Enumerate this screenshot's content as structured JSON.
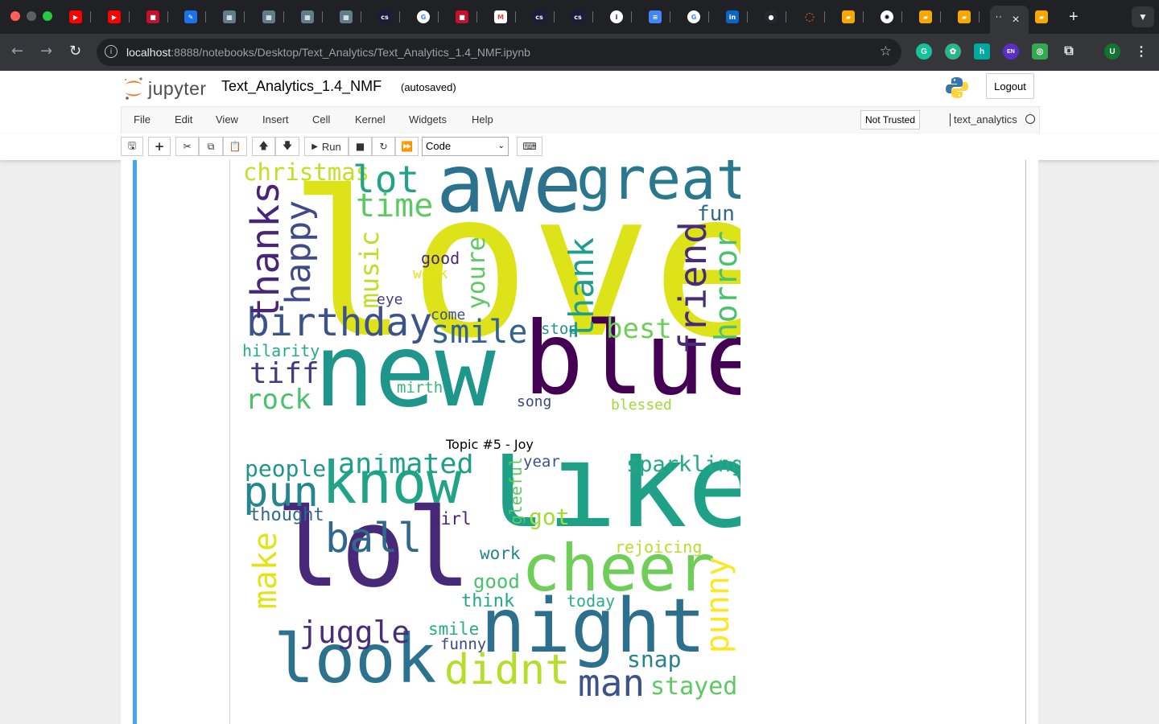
{
  "browser": {
    "active_tab_close": "×",
    "new_tab": "+",
    "url_host": "localhost",
    "url_path": ":8888/notebooks/Desktop/Text_Analytics/Text_Analytics_1.4_NMF.ipynb",
    "profile_initial": "U",
    "ext_en": "EN",
    "ext_h": "h"
  },
  "jupyter": {
    "logo_text": "jupyter",
    "notebook_name": "Text_Analytics_1.4_NMF",
    "autosave_status": "(autosaved)",
    "logout_label": "Logout",
    "menu": [
      "File",
      "Edit",
      "View",
      "Insert",
      "Cell",
      "Kernel",
      "Widgets",
      "Help"
    ],
    "trust_label": "Not Trusted",
    "kernel_name": "text_analytics",
    "run_label": "Run",
    "cell_type": "Code"
  },
  "wordcloud_top": {
    "words": [
      {
        "text": "love",
        "color": "#dde318"
      },
      {
        "text": "new",
        "color": "#1f968b"
      },
      {
        "text": "blue",
        "color": "#440154"
      },
      {
        "text": "awe",
        "color": "#2c728e"
      },
      {
        "text": "great",
        "color": "#2a788e"
      },
      {
        "text": "birthday",
        "color": "#3b528b"
      },
      {
        "text": "christmas",
        "color": "#c2df23"
      },
      {
        "text": "lot",
        "color": "#20a386"
      },
      {
        "text": "time",
        "color": "#5ec962"
      },
      {
        "text": "thanks",
        "color": "#482576"
      },
      {
        "text": "happy",
        "color": "#3e4a89"
      },
      {
        "text": "music",
        "color": "#bddf26"
      },
      {
        "text": "good",
        "color": "#482878"
      },
      {
        "text": "work",
        "color": "#e5e419"
      },
      {
        "text": "eye",
        "color": "#433e85"
      },
      {
        "text": "youre",
        "color": "#5ec962"
      },
      {
        "text": "thank",
        "color": "#1f9e89"
      },
      {
        "text": "fun",
        "color": "#31688e"
      },
      {
        "text": "friend",
        "color": "#472c7a"
      },
      {
        "text": "horror",
        "color": "#4ac16d"
      },
      {
        "text": "smile",
        "color": "#33638d"
      },
      {
        "text": "come",
        "color": "#3b528b"
      },
      {
        "text": "stop",
        "color": "#21918c"
      },
      {
        "text": "best",
        "color": "#6ece58"
      },
      {
        "text": "hilarity",
        "color": "#25ab82"
      },
      {
        "text": "tiff",
        "color": "#453781"
      },
      {
        "text": "rock",
        "color": "#4ac16d"
      },
      {
        "text": "mirth",
        "color": "#35b779"
      },
      {
        "text": "song",
        "color": "#414487"
      },
      {
        "text": "blessed",
        "color": "#a0da39"
      }
    ]
  },
  "wordcloud_bottom": {
    "title": "Topic #5 - Joy",
    "words": [
      {
        "text": "like",
        "color": "#1fa187"
      },
      {
        "text": "lol",
        "color": "#482878"
      },
      {
        "text": "know",
        "color": "#20a386"
      },
      {
        "text": "cheer",
        "color": "#6ece58"
      },
      {
        "text": "night",
        "color": "#2d708e"
      },
      {
        "text": "look",
        "color": "#2c728e"
      },
      {
        "text": "didnt",
        "color": "#b5de2b"
      },
      {
        "text": "man",
        "color": "#3b528b"
      },
      {
        "text": "ball",
        "color": "#31688e"
      },
      {
        "text": "pun",
        "color": "#24868e"
      },
      {
        "text": "animated",
        "color": "#1f9e89"
      },
      {
        "text": "people",
        "color": "#1f968b"
      },
      {
        "text": "thought",
        "color": "#31688e"
      },
      {
        "text": "make",
        "color": "#e2e418"
      },
      {
        "text": "juggle",
        "color": "#472d7b"
      },
      {
        "text": "punny",
        "color": "#fde725"
      },
      {
        "text": "sparkling",
        "color": "#22a884"
      },
      {
        "text": "year",
        "color": "#3b528b"
      },
      {
        "text": "gleeful",
        "color": "#5ec962"
      },
      {
        "text": "got",
        "color": "#a5db36"
      },
      {
        "text": "girl",
        "color": "#482475"
      },
      {
        "text": "work",
        "color": "#25848e"
      },
      {
        "text": "rejoicing",
        "color": "#b8de29"
      },
      {
        "text": "good",
        "color": "#4ac16d"
      },
      {
        "text": "think",
        "color": "#22a884"
      },
      {
        "text": "today",
        "color": "#29af7f"
      },
      {
        "text": "smile",
        "color": "#27ad81"
      },
      {
        "text": "funny",
        "color": "#3f4788"
      },
      {
        "text": "snap",
        "color": "#26828e"
      },
      {
        "text": "stayed",
        "color": "#5ec962"
      }
    ]
  }
}
